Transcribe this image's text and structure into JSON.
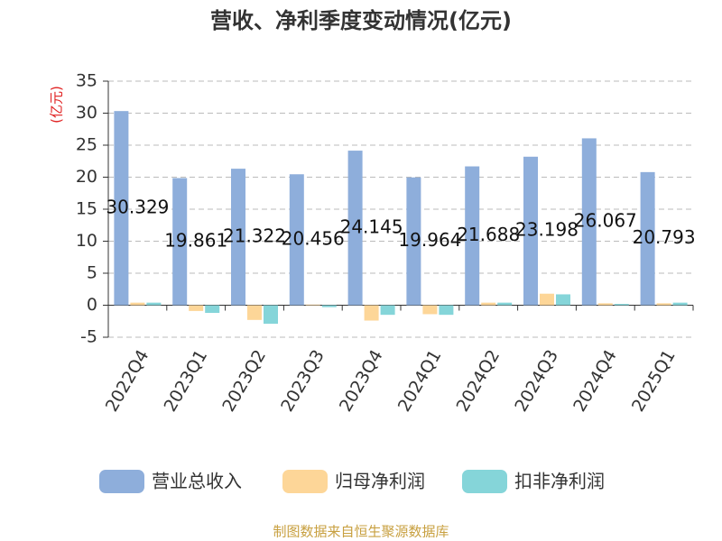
{
  "chart_data": {
    "type": "bar",
    "title": "营收、净利季度变动情况(亿元)",
    "y_label": "(亿元)",
    "categories": [
      "2022Q4",
      "2023Q1",
      "2023Q2",
      "2023Q3",
      "2023Q4",
      "2024Q1",
      "2024Q2",
      "2024Q3",
      "2024Q4",
      "2025Q1"
    ],
    "series": [
      {
        "name": "营业总收入",
        "color": "#8eaedb",
        "show_labels": true,
        "values": [
          30.329,
          19.861,
          21.322,
          20.456,
          24.145,
          19.964,
          21.688,
          23.198,
          26.067,
          20.793
        ]
      },
      {
        "name": "归母净利润",
        "color": "#fdd698",
        "show_labels": false,
        "values": [
          0.4,
          -0.9,
          -2.3,
          0.1,
          -2.4,
          -1.4,
          0.4,
          1.8,
          0.3,
          0.3
        ]
      },
      {
        "name": "扣非净利润",
        "color": "#85d5d9",
        "show_labels": false,
        "values": [
          0.4,
          -1.2,
          -2.9,
          -0.3,
          -1.5,
          -1.5,
          0.4,
          1.7,
          0.2,
          0.4
        ]
      }
    ],
    "ylim": [
      -5,
      35
    ],
    "yticks": [
      -5,
      0,
      5,
      10,
      15,
      20,
      25,
      30,
      35
    ],
    "grid": true,
    "source": "制图数据来自恒生聚源数据库"
  }
}
